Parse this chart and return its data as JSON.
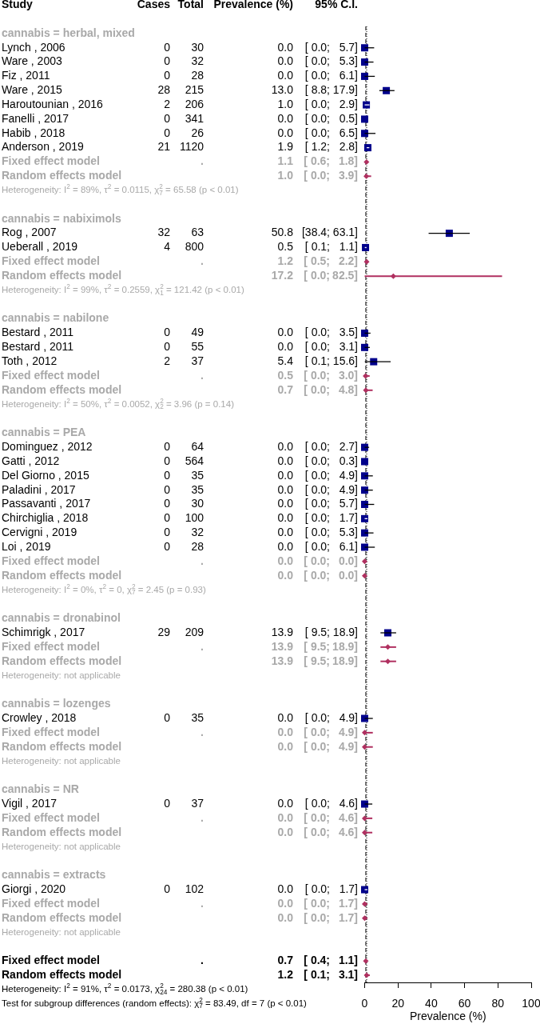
{
  "chart_data": [
    {
      "type": "other",
      "ylabel": "Study",
      "categories": [
        "cannabis = herbal, mixed",
        "Lynch , 2006",
        "Ware , 2003",
        "Fiz , 2011",
        "Ware , 2015",
        "Haroutounian , 2016",
        "Fanelli , 2017",
        "Habib , 2018",
        "Anderson , 2019",
        "Fixed effect model",
        "Random effects model",
        "Heterogeneity: I$^{2}$ = 89%, τ$^{2}$ = 0.0115, χ$^{2}$$_{7}$ = 65.58 (p < 0.01)",
        null,
        "cannabis = nabiximols",
        "Rog , 2007",
        "Ueberall , 2019",
        "Fixed effect model",
        "Random effects model",
        "Heterogeneity: I$^{2}$ = 99%, τ$^{2}$ = 0.2559, χ$^{2}$$_{1}$ = 121.42 (p < 0.01)",
        null,
        "cannabis = nabilone",
        "Bestard , 2011",
        "Bestard , 2011",
        "Toth , 2012",
        "Fixed effect model",
        "Random effects model",
        "Heterogeneity: I$^{2}$ = 50%, τ$^{2}$ = 0.0052, χ$^{2}$$_{2}$ = 3.96 (p = 0.14)",
        null,
        "cannabis = PEA",
        "Dominguez , 2012",
        "Gatti , 2012",
        "Del Giorno , 2015",
        "Paladini , 2017",
        "Passavanti , 2017",
        "Chirchiglia , 2018",
        "Cervigni , 2019",
        "Loi , 2019",
        "Fixed effect model",
        "Random effects model",
        "Heterogeneity: I$^{2}$ = 0%, τ$^{2}$ = 0, χ$^{2}$$_{7}$ = 2.45 (p = 0.93)",
        null,
        "cannabis = dronabinol",
        "Schimrigk , 2017",
        "Fixed effect model",
        "Random effects model",
        "Heterogeneity: not applicable",
        null,
        "cannabis = lozenges",
        "Crowley , 2018",
        "Fixed effect model",
        "Random effects model",
        "Heterogeneity: not applicable",
        null,
        "cannabis = NR",
        "Vigil , 2017",
        "Fixed effect model",
        "Random effects model",
        "Heterogeneity: not applicable",
        null,
        "cannabis = extracts",
        "Giorgi , 2020",
        "Fixed effect model",
        "Random effects model",
        "Heterogeneity: not applicable",
        null,
        "Fixed effect model",
        "Random effects model",
        "Heterogeneity: I$^{2}$ = 91%, τ$^{2}$ = 0.0173, χ$^{2}$$_{24}$ = 280.38 (p < 0.01)",
        "Test for subgroup differences (random effects): χ$^{2}$$_{7}$ = 83.49, df = 7 (p < 0.01)"
      ],
      "series": [
        {
          "name": "Cases",
          "values": [
            null,
            0,
            0,
            0,
            28,
            2,
            0,
            0,
            21,
            null,
            null,
            null,
            null,
            null,
            32,
            4,
            null,
            null,
            null,
            null,
            null,
            0,
            0,
            2,
            null,
            null,
            null,
            null,
            null,
            0,
            0,
            0,
            0,
            0,
            0,
            0,
            0,
            null,
            null,
            null,
            null,
            null,
            29,
            null,
            null,
            null,
            null,
            null,
            0,
            null,
            null,
            null,
            null,
            null,
            0,
            null,
            null,
            null,
            null,
            null,
            0,
            null,
            null,
            null,
            null,
            null,
            null,
            null,
            null
          ],
          "value_labels": [
            null,
            "0",
            "0",
            "0",
            "28",
            "2",
            "0",
            "0",
            "21",
            null,
            null,
            null,
            null,
            null,
            "32",
            "4",
            null,
            null,
            null,
            null,
            null,
            "0",
            "0",
            "2",
            null,
            null,
            null,
            null,
            null,
            "0",
            "0",
            "0",
            "0",
            "0",
            "0",
            "0",
            "0",
            null,
            null,
            null,
            null,
            null,
            "29",
            null,
            null,
            null,
            null,
            null,
            "0",
            null,
            null,
            null,
            null,
            null,
            "0",
            null,
            null,
            null,
            null,
            null,
            "0",
            null,
            null,
            null,
            null,
            null,
            null,
            null,
            null
          ]
        },
        {
          "name": "Total",
          "values": [
            null,
            30,
            32,
            28,
            215,
            206,
            341,
            26,
            1120,
            null,
            null,
            null,
            null,
            null,
            63,
            800,
            null,
            null,
            null,
            null,
            null,
            49,
            55,
            37,
            null,
            null,
            null,
            null,
            null,
            64,
            564,
            35,
            35,
            30,
            100,
            32,
            28,
            null,
            null,
            null,
            null,
            null,
            209,
            null,
            null,
            null,
            null,
            null,
            35,
            null,
            null,
            null,
            null,
            null,
            37,
            null,
            null,
            null,
            null,
            null,
            102,
            null,
            null,
            null,
            null,
            null,
            null,
            null,
            null
          ],
          "value_labels": [
            null,
            "30",
            "32",
            "28",
            "215",
            "206",
            "341",
            "26",
            "1120",
            ".",
            null,
            null,
            null,
            null,
            "63",
            "800",
            ".",
            null,
            null,
            null,
            null,
            "49",
            "55",
            "37",
            ".",
            null,
            null,
            null,
            null,
            "64",
            "564",
            "35",
            "35",
            "30",
            "100",
            "32",
            "28",
            ".",
            null,
            null,
            null,
            null,
            "209",
            ".",
            null,
            null,
            null,
            null,
            "35",
            ".",
            null,
            null,
            null,
            null,
            "37",
            ".",
            null,
            null,
            null,
            null,
            "102",
            ".",
            null,
            null,
            null,
            ".",
            null,
            null,
            null
          ]
        },
        {
          "name": "Prevalence (%)",
          "values": [
            null,
            0,
            0,
            0,
            13.0,
            1.0,
            0,
            0,
            1.9,
            1.1,
            1.0,
            null,
            null,
            null,
            50.8,
            0.5,
            1.2,
            17.2,
            null,
            null,
            null,
            0,
            0,
            5.4,
            0.5,
            0.7,
            null,
            null,
            null,
            0,
            0,
            0,
            0,
            0,
            0,
            0,
            0,
            0,
            0,
            null,
            null,
            null,
            13.9,
            13.9,
            13.9,
            null,
            null,
            null,
            0,
            0,
            0,
            null,
            null,
            null,
            0,
            0,
            0,
            null,
            null,
            null,
            0,
            0,
            0,
            null,
            null,
            0.7,
            1.2,
            null,
            null
          ],
          "value_labels": [
            null,
            "0.0",
            "0.0",
            "0.0",
            "13.0",
            "1.0",
            "0.0",
            "0.0",
            "1.9",
            "1.1",
            "1.0",
            null,
            null,
            null,
            "50.8",
            "0.5",
            "1.2",
            "17.2",
            null,
            null,
            null,
            "0.0",
            "0.0",
            "5.4",
            "0.5",
            "0.7",
            null,
            null,
            null,
            "0.0",
            "0.0",
            "0.0",
            "0.0",
            "0.0",
            "0.0",
            "0.0",
            "0.0",
            "0.0",
            "0.0",
            null,
            null,
            null,
            "13.9",
            "13.9",
            "13.9",
            null,
            null,
            null,
            "0.0",
            "0.0",
            "0.0",
            null,
            null,
            null,
            "0.0",
            "0.0",
            "0.0",
            null,
            null,
            null,
            "0.0",
            "0.0",
            "0.0",
            null,
            null,
            "0.7",
            "1.2",
            null,
            null
          ]
        },
        {
          "name": "95% C.I.",
          "values": [
            null,
            0,
            0,
            0,
            8.8,
            0,
            0,
            0,
            1.2,
            0.6,
            0,
            null,
            null,
            null,
            38.4,
            0.1,
            0.5,
            0,
            null,
            null,
            null,
            0,
            0,
            0.1,
            0,
            0,
            null,
            null,
            null,
            0,
            0,
            0,
            0,
            0,
            0,
            0,
            0,
            0,
            0,
            null,
            null,
            null,
            9.5,
            9.5,
            9.5,
            null,
            null,
            null,
            0,
            0,
            0,
            null,
            null,
            null,
            0,
            0,
            0,
            null,
            null,
            null,
            0,
            0,
            0,
            null,
            null,
            0.4,
            0.1,
            null,
            null
          ],
          "value_labels": [
            null,
            "[ 0.0;",
            "[ 0.0;",
            "[ 0.0;",
            "[ 8.8;",
            "[ 0.0;",
            "[ 0.0;",
            "[ 0.0;",
            "[ 1.2;",
            "[ 0.6;",
            "[ 0.0;",
            null,
            null,
            null,
            "[38.4;",
            "[ 0.1;",
            "[ 0.5;",
            "[ 0.0;",
            null,
            null,
            null,
            "[ 0.0;",
            "[ 0.0;",
            "[ 0.1;",
            "[ 0.0;",
            "[ 0.0;",
            null,
            null,
            null,
            "[ 0.0;",
            "[ 0.0;",
            "[ 0.0;",
            "[ 0.0;",
            "[ 0.0;",
            "[ 0.0;",
            "[ 0.0;",
            "[ 0.0;",
            "[ 0.0;",
            "[ 0.0;",
            null,
            null,
            null,
            "[ 9.5;",
            "[ 9.5;",
            "[ 9.5;",
            null,
            null,
            null,
            "[ 0.0;",
            "[ 0.0;",
            "[ 0.0;",
            null,
            null,
            null,
            "[ 0.0;",
            "[ 0.0;",
            "[ 0.0;",
            null,
            null,
            null,
            "[ 0.0;",
            "[ 0.0;",
            "[ 0.0;",
            null,
            null,
            "[ 0.4;",
            "[ 0.1;",
            null,
            null
          ]
        },
        {
          "values": [
            null,
            5.7,
            5.3,
            6.1,
            17.9,
            2.9,
            0.5,
            6.5,
            2.8,
            1.8,
            3.9,
            null,
            null,
            null,
            63.1,
            1.1,
            2.2,
            82.5,
            null,
            null,
            null,
            3.5,
            3.1,
            15.6,
            3.0,
            4.8,
            null,
            null,
            null,
            2.7,
            0.3,
            4.9,
            4.9,
            5.7,
            1.7,
            5.3,
            6.1,
            0,
            0,
            null,
            null,
            null,
            18.9,
            18.9,
            18.9,
            null,
            null,
            null,
            4.9,
            4.9,
            4.9,
            null,
            null,
            null,
            4.6,
            4.6,
            4.6,
            null,
            null,
            null,
            1.7,
            1.7,
            1.7,
            null,
            null,
            1.1,
            3.1,
            null,
            null
          ],
          "value_labels": [
            null,
            "5.7]",
            "5.3]",
            "6.1]",
            "17.9]",
            "2.9]",
            "0.5]",
            "6.5]",
            "2.8]",
            "1.8]",
            "3.9]",
            null,
            null,
            null,
            "63.1]",
            "1.1]",
            "2.2]",
            "82.5]",
            null,
            null,
            null,
            "3.5]",
            "3.1]",
            "15.6]",
            "3.0]",
            "4.8]",
            null,
            null,
            null,
            "2.7]",
            "0.3]",
            "4.9]",
            "4.9]",
            "5.7]",
            "1.7]",
            "5.3]",
            "6.1]",
            "0.0]",
            "0.0]",
            null,
            null,
            null,
            "18.9]",
            "18.9]",
            "18.9]",
            null,
            null,
            null,
            "4.9]",
            "4.9]",
            "4.9]",
            null,
            null,
            null,
            "4.6]",
            "4.6]",
            "4.6]",
            null,
            null,
            null,
            "1.7]",
            "1.7]",
            "1.7]",
            null,
            null,
            "1.1]",
            "3.1]",
            null,
            null
          ]
        }
      ]
    },
    {
      "type": "scatter",
      "orientation": "horizontal",
      "xlabel": "Prevalence (%)",
      "xlim": [
        0,
        100
      ],
      "xticks": [
        0,
        20,
        40,
        60,
        80,
        100
      ],
      "categories": [
        null,
        null,
        null,
        null,
        null,
        null,
        null,
        null,
        null,
        null,
        null,
        null,
        null,
        null,
        null,
        null,
        null,
        null,
        null,
        null,
        null,
        null,
        null,
        null,
        null,
        null,
        null,
        null,
        null,
        null,
        null,
        null,
        null,
        null,
        null,
        null,
        null,
        null,
        null,
        null,
        null,
        null,
        null,
        null,
        null,
        null,
        null,
        null,
        null,
        null,
        null,
        null,
        null,
        null,
        null,
        null,
        null,
        null,
        null,
        null,
        null,
        null,
        null,
        null,
        null,
        null,
        null
      ],
      "series": [
        {
          "type": "scatter",
          "marker": "square",
          "color": "#00008b",
          "values": [
            null,
            0,
            0,
            0,
            13.0,
            1.0,
            0,
            0,
            1.9,
            null,
            null,
            null,
            null,
            null,
            50.8,
            0.5,
            null,
            null,
            null,
            null,
            null,
            0,
            0,
            5.4,
            null,
            null,
            null,
            null,
            null,
            0,
            0,
            0,
            0,
            0,
            0,
            0,
            0,
            null,
            null,
            null,
            null,
            null,
            13.9,
            null,
            null,
            null,
            null,
            null,
            0,
            null,
            null,
            null,
            null,
            null,
            0,
            null,
            null,
            null,
            null,
            null,
            0,
            null,
            null,
            null,
            null,
            null,
            null
          ],
          "errors": [
            null,
            [
              0,
              5.7
            ],
            [
              0,
              5.3
            ],
            [
              0,
              6.1
            ],
            [
              8.8,
              17.9
            ],
            [
              0,
              2.9
            ],
            null,
            [
              0,
              6.5
            ],
            [
              1.2,
              2.8
            ],
            null,
            null,
            null,
            null,
            null,
            [
              38.4,
              63.1
            ],
            [
              0.1,
              1.1
            ],
            null,
            null,
            null,
            null,
            null,
            [
              0,
              3.5
            ],
            [
              0,
              3.1
            ],
            [
              0.1,
              15.6
            ],
            null,
            null,
            null,
            null,
            null,
            [
              0,
              2.7
            ],
            null,
            [
              0,
              4.9
            ],
            [
              0,
              4.9
            ],
            [
              0,
              5.7
            ],
            [
              0,
              1.7
            ],
            [
              0,
              5.3
            ],
            [
              0,
              6.1
            ],
            null,
            null,
            null,
            null,
            null,
            [
              9.5,
              18.9
            ],
            null,
            null,
            null,
            null,
            null,
            [
              0,
              4.9
            ],
            null,
            null,
            null,
            null,
            null,
            [
              0,
              4.6
            ],
            null,
            null,
            null,
            null,
            null,
            [
              0,
              1.7
            ],
            null,
            null,
            null,
            null,
            null,
            null
          ]
        },
        {
          "type": "scatter",
          "marker": "diamond",
          "color": "#b03060",
          "values": [
            null,
            null,
            null,
            null,
            null,
            null,
            null,
            null,
            null,
            1.1,
            1.0,
            null,
            null,
            null,
            null,
            null,
            1.2,
            17.2,
            null,
            null,
            null,
            null,
            null,
            null,
            0.5,
            0.7,
            null,
            null,
            null,
            null,
            null,
            null,
            null,
            null,
            null,
            null,
            null,
            0,
            0,
            null,
            null,
            null,
            null,
            13.9,
            13.9,
            null,
            null,
            null,
            null,
            0,
            0,
            null,
            null,
            null,
            null,
            0,
            0,
            null,
            null,
            null,
            null,
            0,
            0,
            null,
            null,
            0.7,
            1.2
          ],
          "errors": [
            null,
            null,
            null,
            null,
            null,
            null,
            null,
            null,
            null,
            [
              0.6,
              1.8
            ],
            [
              0,
              3.9
            ],
            null,
            null,
            null,
            null,
            null,
            [
              0.5,
              2.2
            ],
            [
              0,
              82.5
            ],
            null,
            null,
            null,
            null,
            null,
            null,
            [
              0,
              3.0
            ],
            [
              0,
              4.8
            ],
            null,
            null,
            null,
            null,
            null,
            null,
            null,
            null,
            null,
            null,
            null,
            [
              0,
              0
            ],
            [
              0,
              0
            ],
            null,
            null,
            null,
            null,
            [
              9.5,
              18.9
            ],
            [
              9.5,
              18.9
            ],
            null,
            null,
            null,
            null,
            [
              0,
              4.9
            ],
            [
              0,
              4.9
            ],
            null,
            null,
            null,
            null,
            [
              0,
              4.6
            ],
            [
              0,
              4.6
            ],
            null,
            null,
            null,
            null,
            [
              0,
              1.7
            ],
            [
              0,
              1.7
            ],
            null,
            null,
            null,
            [
              0.1,
              3.1
            ]
          ]
        }
      ],
      "ref_lines": [
        {
          "axis": "x",
          "value": 0.7,
          "line_style": "dashed"
        },
        {
          "axis": "x",
          "value": 1.2,
          "line_style": "dotted"
        }
      ]
    }
  ]
}
